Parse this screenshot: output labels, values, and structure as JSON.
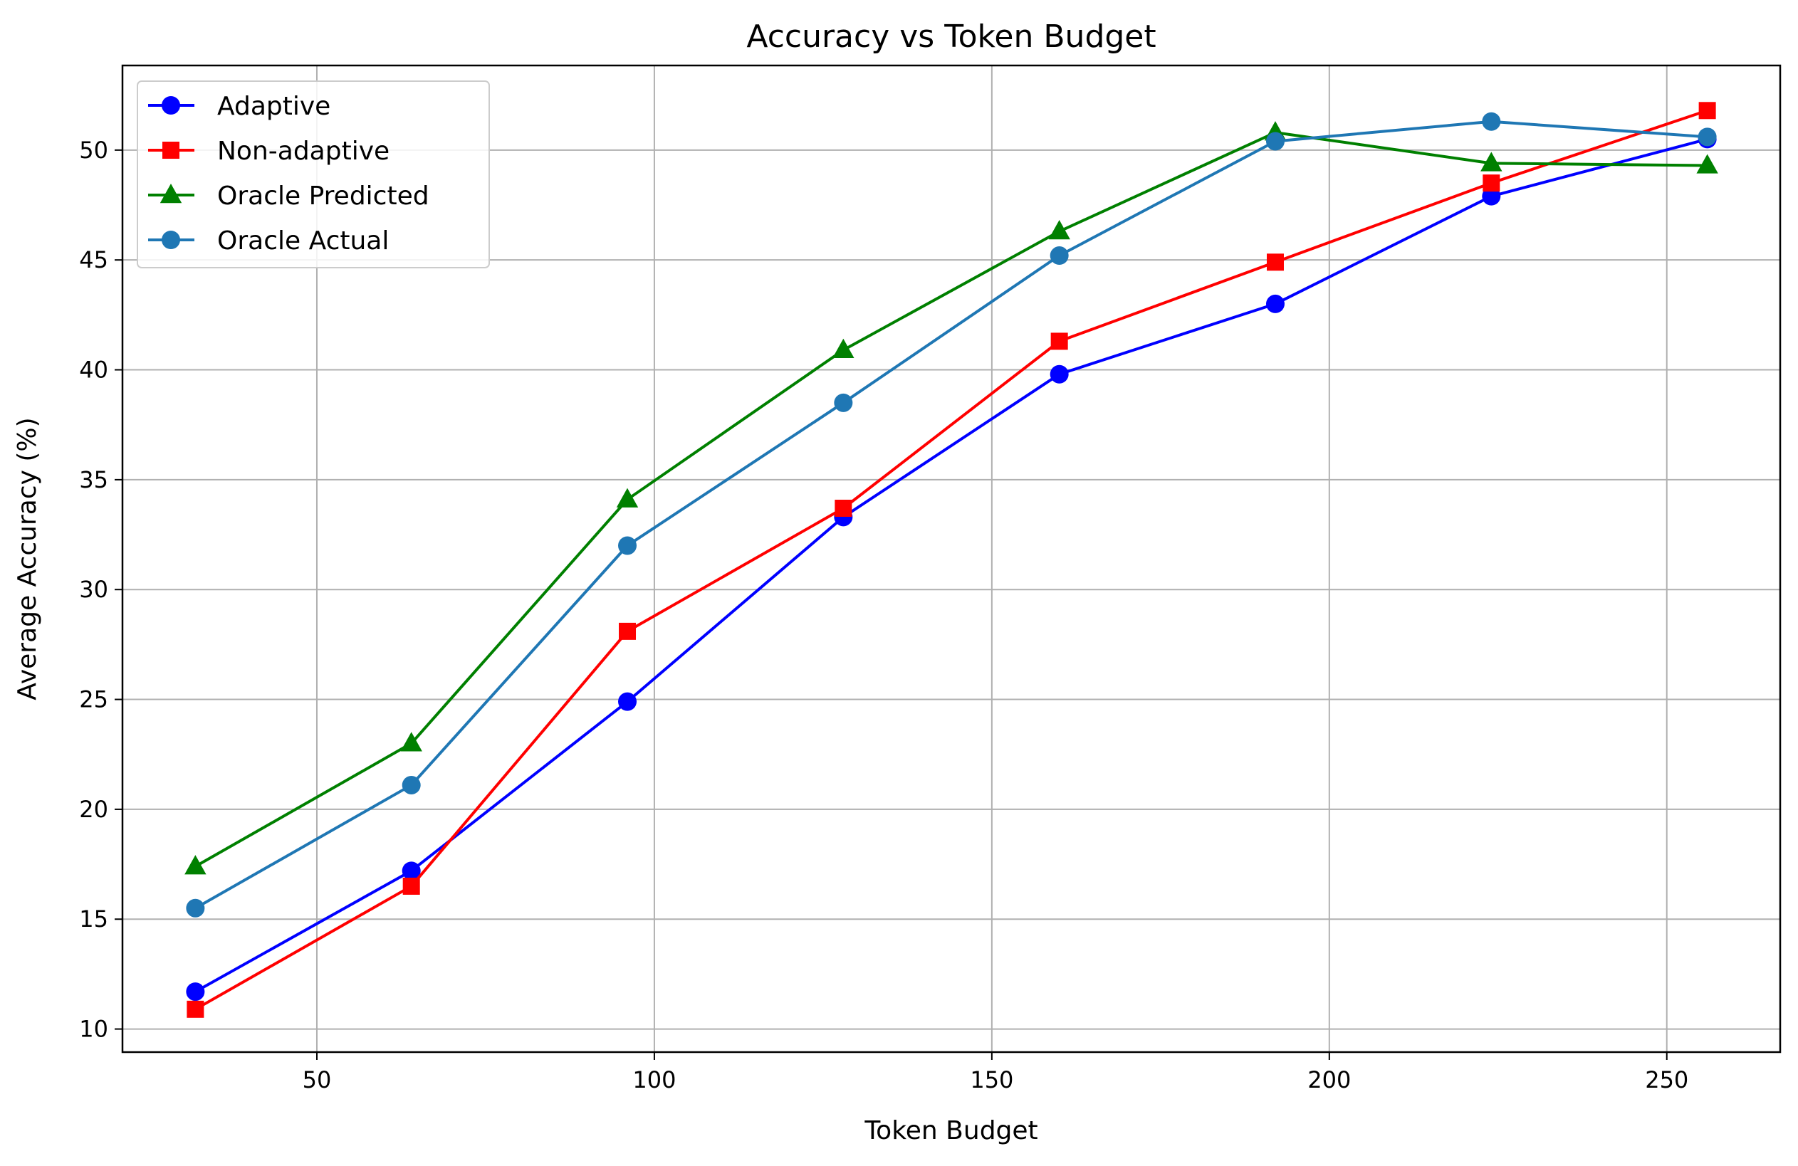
{
  "chart_data": {
    "type": "line",
    "title": "Accuracy vs Token Budget",
    "xlabel": "Token Budget",
    "ylabel": "Average Accuracy (%)",
    "xlim": [
      21.2,
      266.8
    ],
    "ylim": [
      8.95,
      53.85
    ],
    "xticks": [
      50,
      100,
      150,
      200,
      250
    ],
    "yticks": [
      10,
      15,
      20,
      25,
      30,
      35,
      40,
      45,
      50
    ],
    "grid": true,
    "legend_position": "upper-left",
    "x": [
      32,
      64,
      96,
      128,
      160,
      192,
      224,
      256
    ],
    "series": [
      {
        "name": "Adaptive",
        "color": "#0000ff",
        "marker": "circle",
        "values": [
          11.7,
          17.2,
          24.9,
          33.3,
          39.8,
          43.0,
          47.9,
          50.5
        ]
      },
      {
        "name": "Non-adaptive",
        "color": "#ff0000",
        "marker": "square",
        "values": [
          10.9,
          16.5,
          28.1,
          33.7,
          41.3,
          44.9,
          48.5,
          51.8
        ]
      },
      {
        "name": "Oracle Predicted",
        "color": "#008000",
        "marker": "triangle",
        "values": [
          17.4,
          23.0,
          34.1,
          40.9,
          46.3,
          50.8,
          49.4,
          49.3
        ]
      },
      {
        "name": "Oracle Actual",
        "color": "#1f77b4",
        "marker": "circle",
        "values": [
          15.5,
          21.1,
          32.0,
          38.5,
          45.2,
          50.4,
          51.3,
          50.6
        ]
      }
    ]
  }
}
